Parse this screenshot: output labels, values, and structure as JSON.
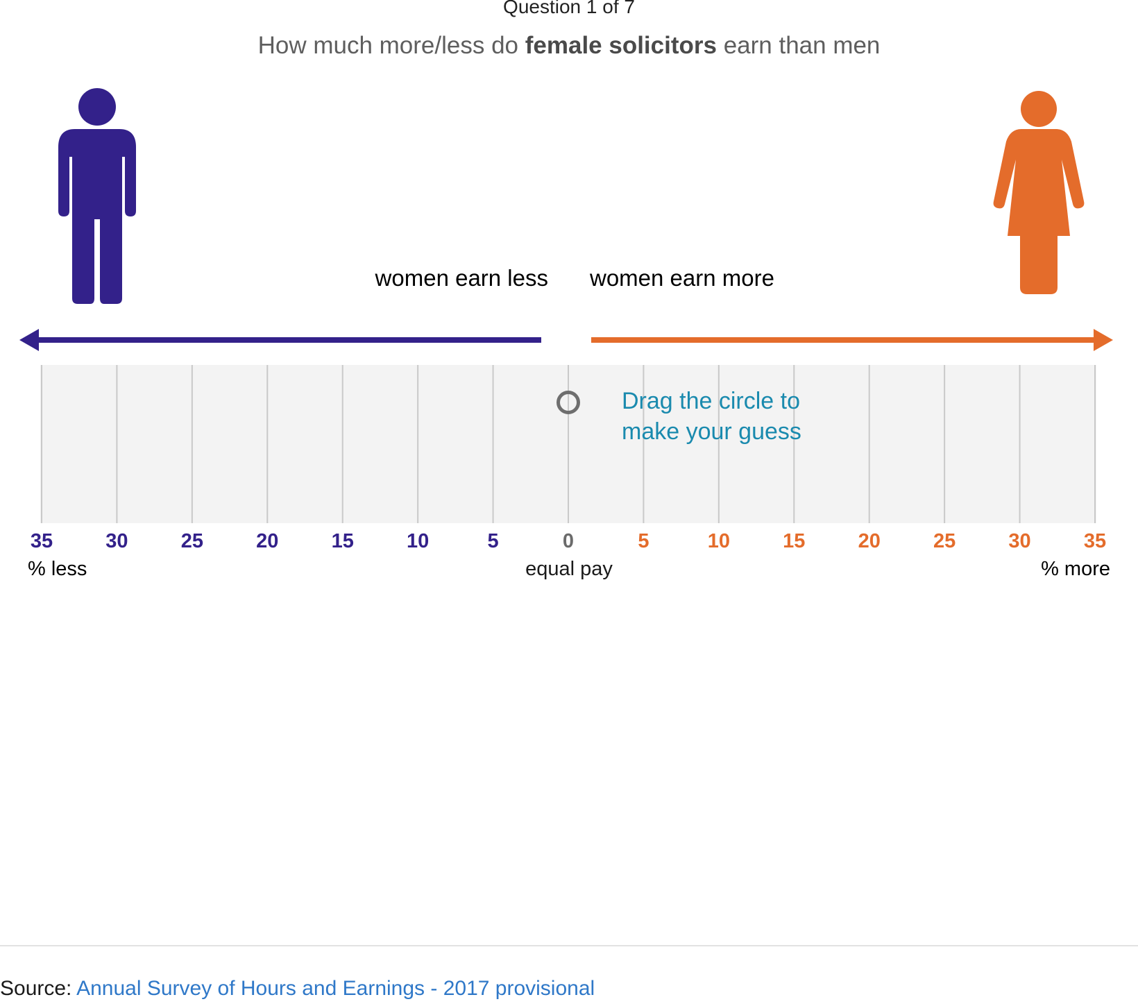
{
  "colors": {
    "less": "#33218a",
    "more": "#e46c2b",
    "zero": "#6b6b6b",
    "hint": "#1a8aae",
    "grid": "#c9c9c9",
    "track": "#f3f3f3",
    "link": "#2f78c8"
  },
  "header": {
    "counter": "Question 1 of 7",
    "question_prefix": "How much more/less do ",
    "question_bold": "female solicitors",
    "question_suffix": " earn than men"
  },
  "figures": {
    "left_icon": "man-icon",
    "right_icon": "woman-icon"
  },
  "direction": {
    "less_label": "women earn less",
    "more_label": "women earn more",
    "left_arrow_icon": "arrow-left-icon",
    "right_arrow_icon": "arrow-right-icon"
  },
  "slider": {
    "hint_line1": "Drag the circle to",
    "hint_line2": "make your guess",
    "value": 0,
    "min": -35,
    "max": 35,
    "ticks": [
      {
        "value": -35,
        "label": "35"
      },
      {
        "value": -30,
        "label": "30"
      },
      {
        "value": -25,
        "label": "25"
      },
      {
        "value": -20,
        "label": "20"
      },
      {
        "value": -15,
        "label": "15"
      },
      {
        "value": -10,
        "label": "10"
      },
      {
        "value": -5,
        "label": "5"
      },
      {
        "value": 0,
        "label": "0"
      },
      {
        "value": 5,
        "label": "5"
      },
      {
        "value": 10,
        "label": "10"
      },
      {
        "value": 15,
        "label": "15"
      },
      {
        "value": 20,
        "label": "20"
      },
      {
        "value": 25,
        "label": "25"
      },
      {
        "value": 30,
        "label": "30"
      },
      {
        "value": 35,
        "label": "35"
      }
    ],
    "less_end_label": "% less",
    "equal_label": "equal pay",
    "more_end_label": "% more"
  },
  "footer": {
    "source_prefix": "Source: ",
    "source_link": "Annual Survey of Hours and Earnings - 2017 provisional"
  }
}
